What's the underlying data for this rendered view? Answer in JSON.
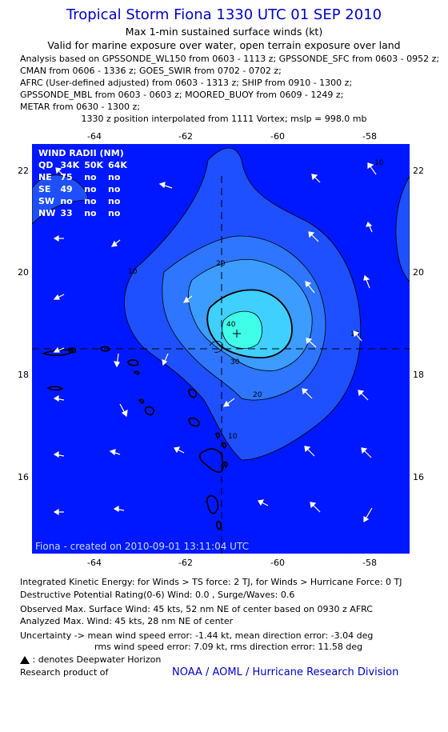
{
  "title": "Tropical Storm Fiona 1330 UTC 01 SEP 2010",
  "subtitle1": "Max 1-min sustained surface winds (kt)",
  "subtitle2": "Valid for marine exposure over water, open terrain exposure over land",
  "analysis_lines": [
    "Analysis based on GPSSONDE_WL150 from 0603 - 1113 z; GPSSONDE_SFC from 0603 - 0952 z;",
    "CMAN from 0606 - 1336 z; GOES_SWIR from 0702 - 0702 z;",
    "AFRC (User-defined adjusted) from 0603 - 1313 z; SHIP from 0910 - 1300 z;",
    "GPSSONDE_MBL from 0603 - 0603 z; MOORED_BUOY from 0609 - 1249 z;",
    "METAR from 0630 - 1300 z;"
  ],
  "position_line": "1330 z position interpolated from 1111 Vortex; mslp = 998.0 mb",
  "map": {
    "lon_ticks": [
      "-64",
      "-62",
      "-60",
      "-58"
    ],
    "lat_ticks": [
      "22",
      "20",
      "18",
      "16"
    ],
    "contour_labels": [
      "10",
      "10",
      "10",
      "10",
      "20",
      "20",
      "30",
      "40"
    ],
    "wind_radii": {
      "header": [
        "QD",
        "34K",
        "50K",
        "64K"
      ],
      "rows": [
        [
          "NE",
          "75",
          "no",
          "no"
        ],
        [
          "SE",
          "49",
          "no",
          "no"
        ],
        [
          "SW",
          "no",
          "no",
          "no"
        ],
        [
          "NW",
          "33",
          "no",
          "no"
        ]
      ],
      "title": "WIND RADII (NM)"
    },
    "credit": "Fiona - created on 2010-09-01 13:11:04 UTC",
    "colors": {
      "ocean": "#0018ff",
      "level1": "#1e50ff",
      "level2": "#2e76ff",
      "level3": "#3c9cff",
      "level4": "#3fd0ff",
      "level5": "#40ffe8"
    }
  },
  "ike_line": "Integrated Kinetic Energy: for Winds > TS force: 2 TJ, for Winds > Hurricane Force: 0 TJ",
  "dpr_line": "Destructive Potential Rating(0-6)   Wind: 0.0 , Surge/Waves: 0.6",
  "observed_line": "Observed Max. Surface Wind: 45 kts, 52 nm NE of center based on 0930 z AFRC",
  "analyzed_line": "Analyzed Max. Wind: 45 kts, 28 nm NE of center",
  "uncertainty_line1": "Uncertainty -> mean wind speed error:   -1.44 kt,   mean direction error:   -3.04 deg",
  "uncertainty_line2": "rms wind speed error: 7.09 kt,   rms direction error: 11.58 deg",
  "deepwater_note": ": denotes Deepwater Horizon",
  "research_label": "Research product of",
  "research_org": "NOAA / AOML / Hurricane Research Division"
}
